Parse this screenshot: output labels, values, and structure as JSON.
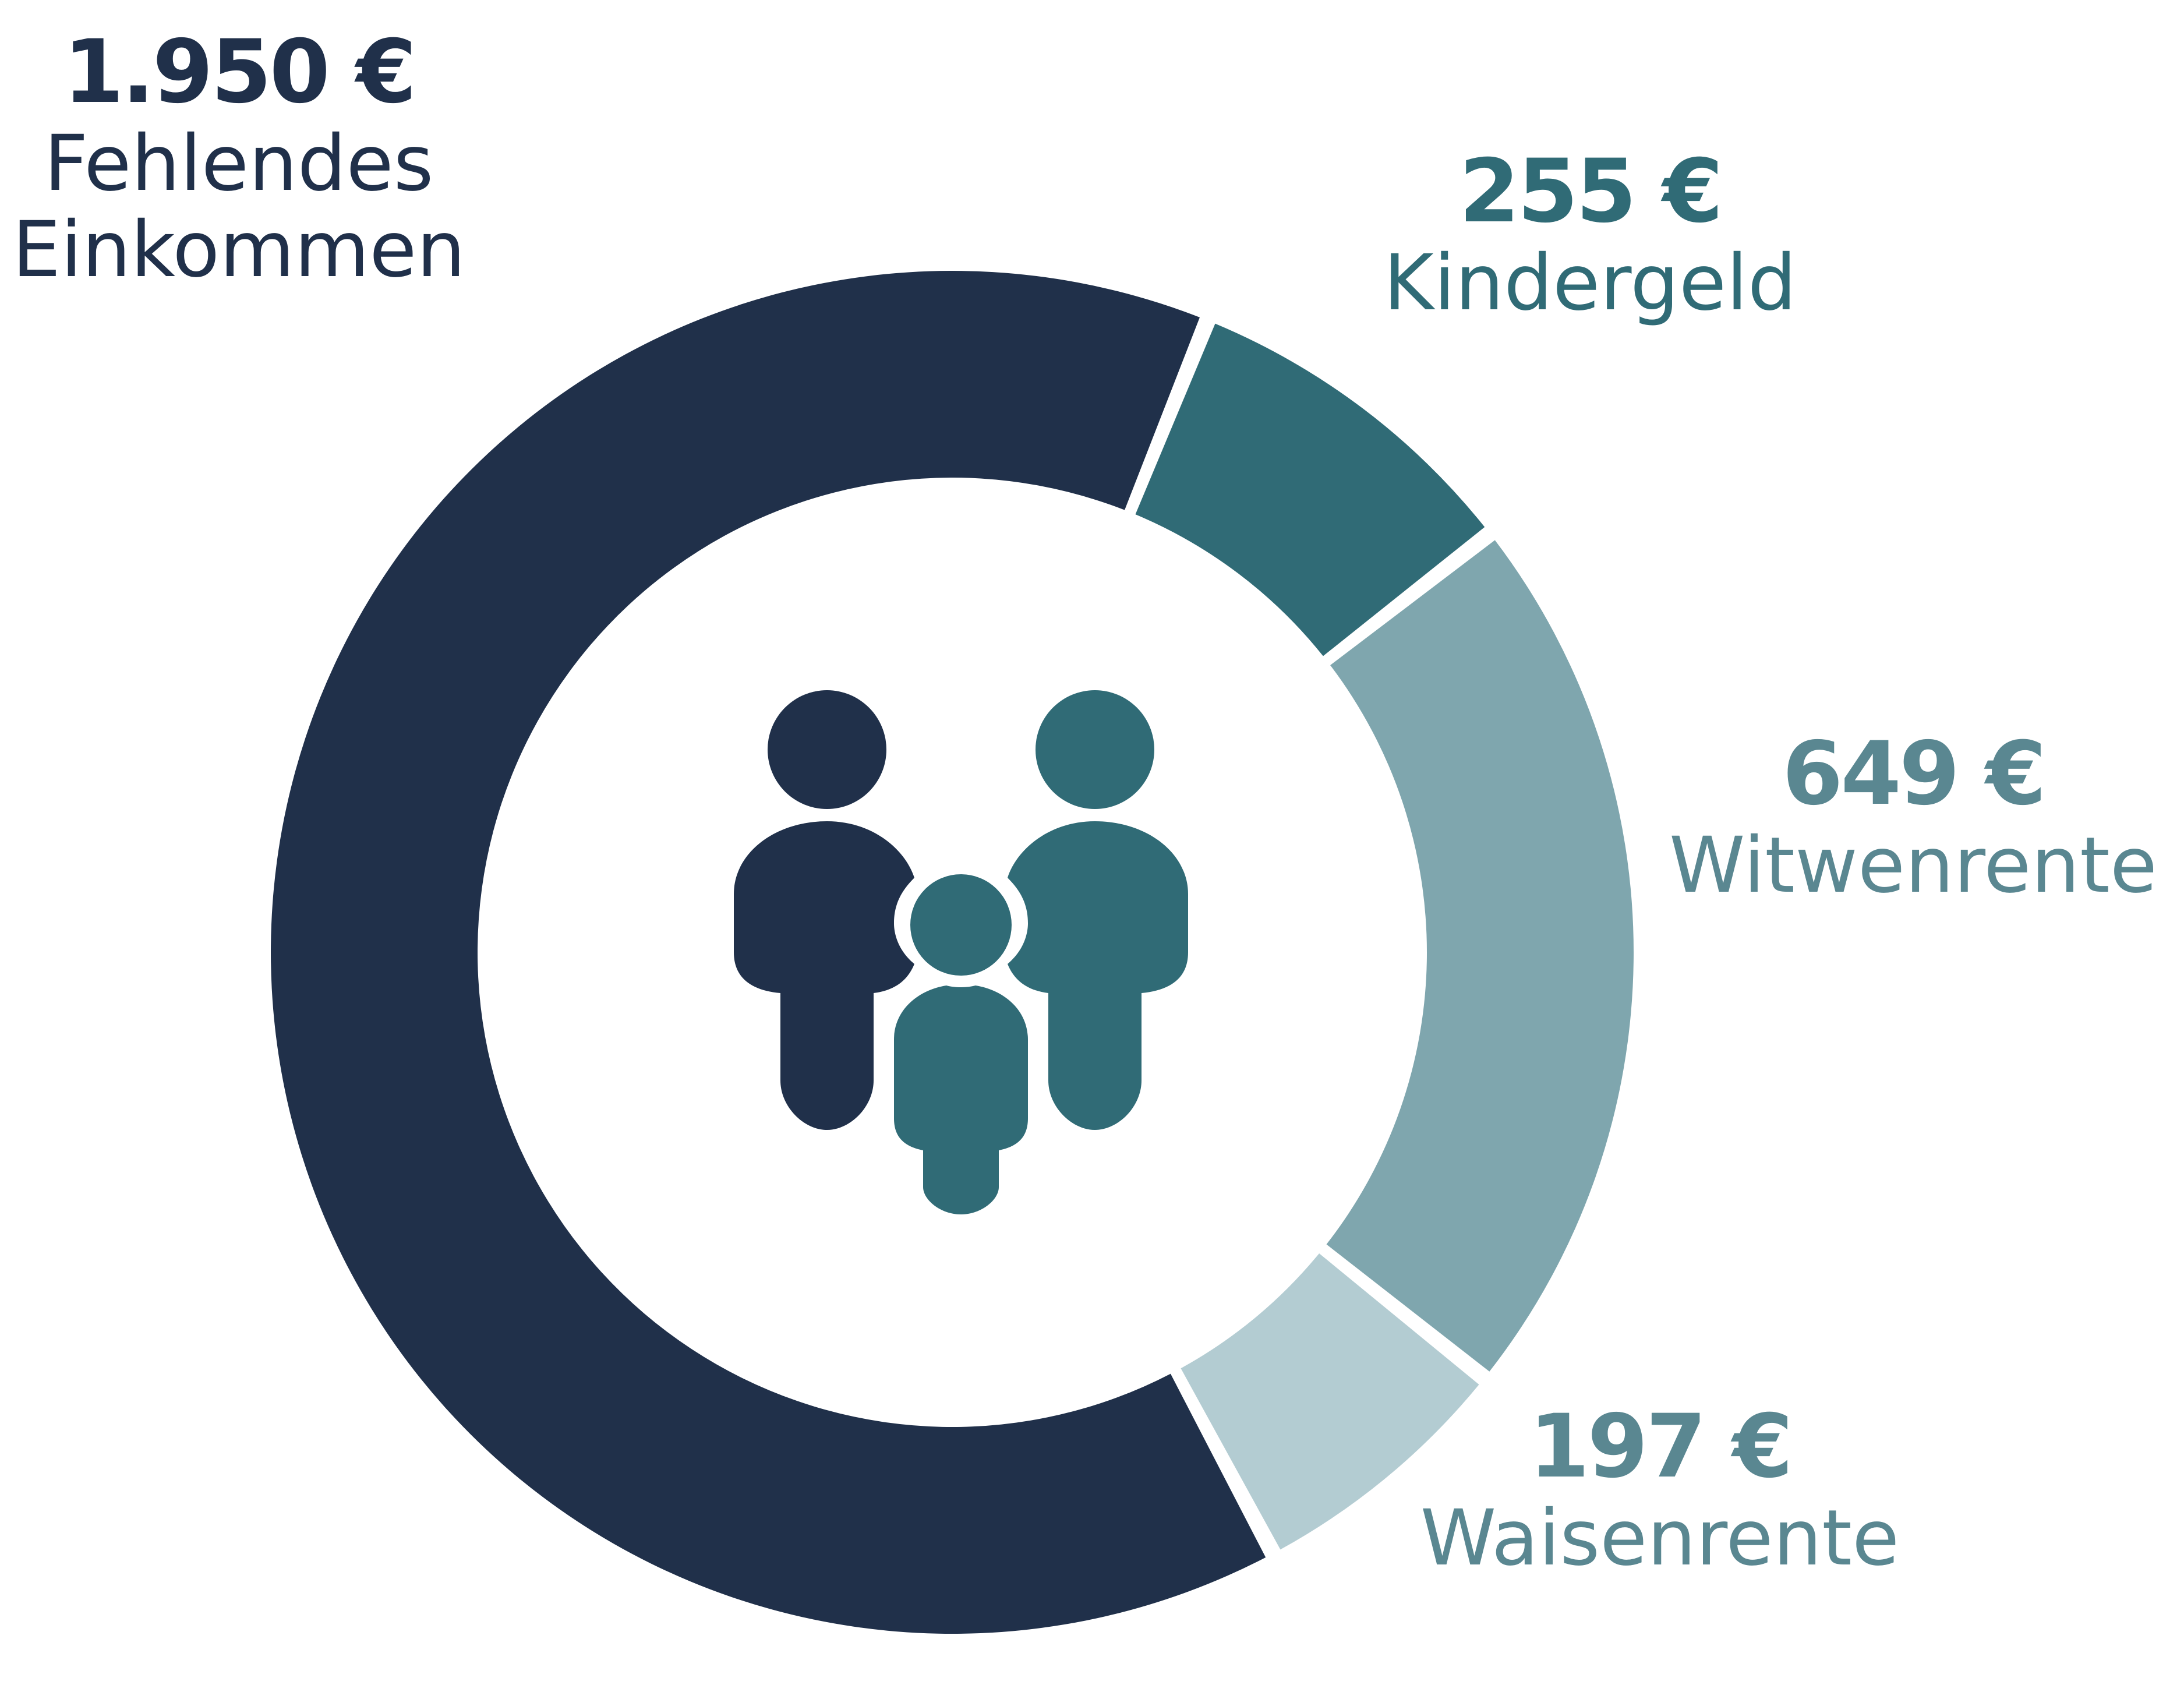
{
  "chart_data": {
    "type": "pie",
    "categories": [
      "Fehlendes Einkommen",
      "Kindergeld",
      "Witwenrente",
      "Waisenrente"
    ],
    "values": [
      1950,
      255,
      649,
      197
    ],
    "value_labels": [
      "1.950 €",
      "255 €",
      "649 €",
      "197 €"
    ],
    "colors": [
      "#20304a",
      "#306b76",
      "#7fa6ae",
      "#b3ccd2"
    ]
  },
  "center_icon": "family-icon",
  "icon_colors": {
    "dark": "#20304a",
    "teal": "#306b76"
  }
}
